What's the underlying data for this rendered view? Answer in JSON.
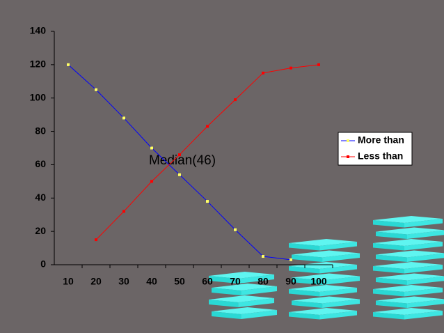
{
  "chart_data": {
    "type": "line",
    "categories": [
      10,
      20,
      30,
      40,
      50,
      60,
      70,
      80,
      90,
      100
    ],
    "series": [
      {
        "name": "More than",
        "color": "#0000ff",
        "marker_color": "#ffff66",
        "values": [
          120,
          105,
          88,
          70,
          54,
          38,
          21,
          5,
          3,
          null
        ]
      },
      {
        "name": "Less than",
        "color": "#ff0000",
        "marker_color": "#ff0000",
        "values": [
          null,
          15,
          32,
          50,
          66,
          83,
          99,
          115,
          118,
          120
        ]
      }
    ],
    "ylim": [
      0,
      140
    ],
    "yticks": [
      0,
      20,
      40,
      60,
      80,
      100,
      120,
      140
    ],
    "annotation": "Median(46)",
    "legend": "right"
  }
}
